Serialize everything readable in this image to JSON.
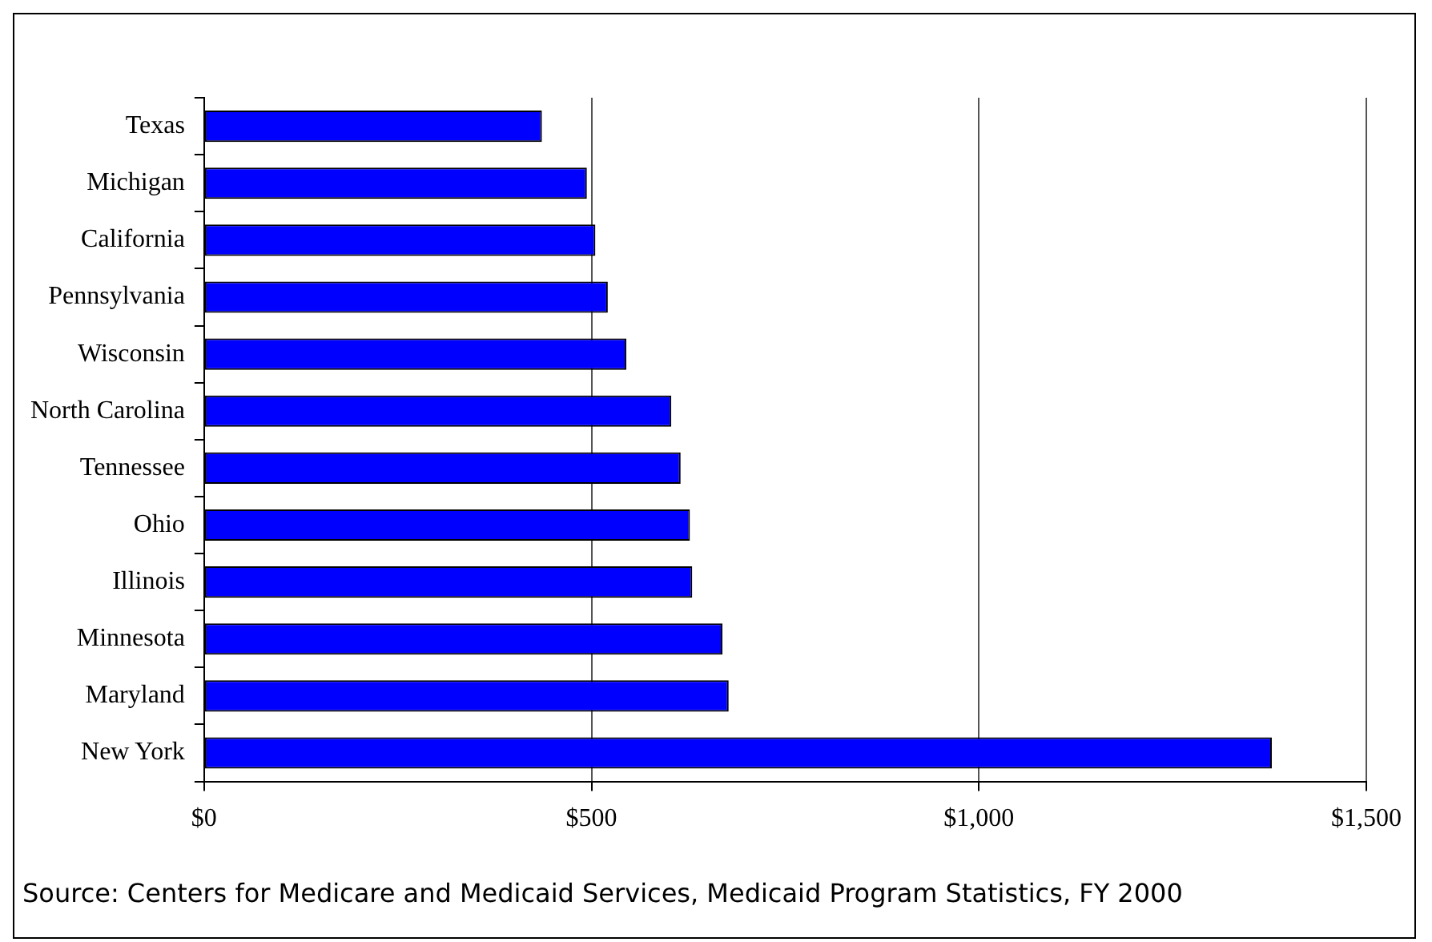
{
  "chart_data": {
    "type": "bar",
    "orientation": "horizontal",
    "categories": [
      "Texas",
      "Michigan",
      "California",
      "Pennsylvania",
      "Wisconsin",
      "North Carolina",
      "Tennessee",
      "Ohio",
      "Illinois",
      "Minnesota",
      "Maryland",
      "New York"
    ],
    "values": [
      436,
      494,
      505,
      521,
      545,
      603,
      615,
      627,
      630,
      669,
      677,
      1378
    ],
    "color": "#0000ff",
    "xlim": [
      0,
      1500
    ],
    "xticks": [
      {
        "value": 0,
        "label": "$0"
      },
      {
        "value": 500,
        "label": "$500"
      },
      {
        "value": 1000,
        "label": "$1,000"
      },
      {
        "value": 1500,
        "label": "$1,500"
      }
    ],
    "grid": "x",
    "annotations": [
      "Source:  Centers for Medicare and Medicaid Services, Medicaid Program Statistics, FY 2000"
    ]
  }
}
